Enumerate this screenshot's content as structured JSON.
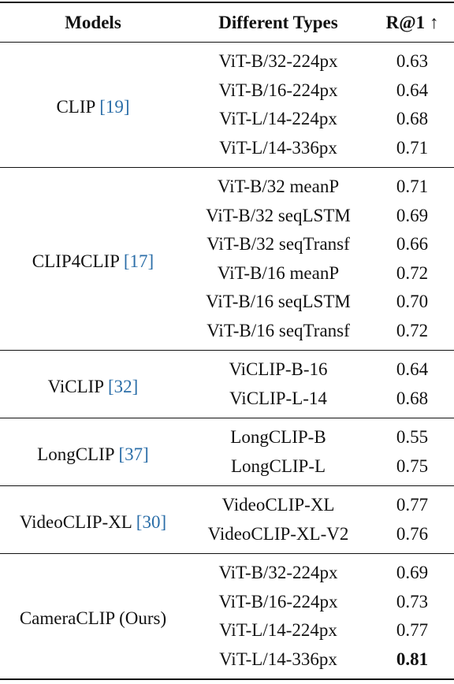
{
  "table": {
    "headers": {
      "models": "Models",
      "types": "Different Types",
      "r1": "R@1 ↑"
    },
    "groups": [
      {
        "model": "CLIP",
        "cite": "19",
        "rows": [
          {
            "type": "ViT-B/32-224px",
            "r1": "0.63"
          },
          {
            "type": "ViT-B/16-224px",
            "r1": "0.64"
          },
          {
            "type": "ViT-L/14-224px",
            "r1": "0.68"
          },
          {
            "type": "ViT-L/14-336px",
            "r1": "0.71"
          }
        ]
      },
      {
        "model": "CLIP4CLIP",
        "cite": "17",
        "rows": [
          {
            "type": "ViT-B/32 meanP",
            "r1": "0.71"
          },
          {
            "type": "ViT-B/32 seqLSTM",
            "r1": "0.69"
          },
          {
            "type": "ViT-B/32 seqTransf",
            "r1": "0.66"
          },
          {
            "type": "ViT-B/16 meanP",
            "r1": "0.72"
          },
          {
            "type": "ViT-B/16 seqLSTM",
            "r1": "0.70"
          },
          {
            "type": "ViT-B/16 seqTransf",
            "r1": "0.72"
          }
        ]
      },
      {
        "model": "ViCLIP",
        "cite": "32",
        "rows": [
          {
            "type": "ViCLIP-B-16",
            "r1": "0.64"
          },
          {
            "type": "ViCLIP-L-14",
            "r1": "0.68"
          }
        ]
      },
      {
        "model": "LongCLIP",
        "cite": "37",
        "rows": [
          {
            "type": "LongCLIP-B",
            "r1": "0.55"
          },
          {
            "type": "LongCLIP-L",
            "r1": "0.75"
          }
        ]
      },
      {
        "model": "VideoCLIP-XL",
        "cite": "30",
        "rows": [
          {
            "type": "VideoCLIP-XL",
            "r1": "0.77"
          },
          {
            "type": "VideoCLIP-XL-V2",
            "r1": "0.76"
          }
        ]
      },
      {
        "model": "CameraCLIP (Ours)",
        "rows": [
          {
            "type": "ViT-B/32-224px",
            "r1": "0.69"
          },
          {
            "type": "ViT-B/16-224px",
            "r1": "0.73"
          },
          {
            "type": "ViT-L/14-224px",
            "r1": "0.77"
          },
          {
            "type": "ViT-L/14-336px",
            "r1": "0.81",
            "best": true
          }
        ]
      }
    ]
  }
}
